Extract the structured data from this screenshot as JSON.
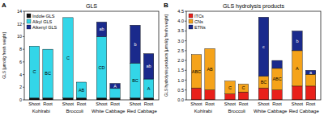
{
  "chart_data": [
    {
      "type": "bar",
      "stacked": true,
      "panel_label": "A",
      "title": "GLS",
      "y_label": "GLS [µmol/g fresh weight]",
      "categories": [
        "Shoot",
        "Root",
        "Shoot",
        "Root",
        "Shoot",
        "Root",
        "Shoot",
        "Root"
      ],
      "groups": [
        "Kohlrabi",
        "Broccoli",
        "White Cabbage",
        "Red Cabbage"
      ],
      "ylim": [
        0,
        14
      ],
      "yticks": [
        0,
        2,
        4,
        6,
        8,
        10,
        12,
        14
      ],
      "legend": "top-left",
      "series": [
        {
          "name": "Indole GLS",
          "color": "#111111",
          "values": [
            0.3,
            0.3,
            0.3,
            0.3,
            0.3,
            0.3,
            0.3,
            0.3
          ],
          "letters": [
            null,
            null,
            null,
            null,
            null,
            null,
            null,
            null
          ]
        },
        {
          "name": "Alkyl GLS",
          "color": "#33d6e8",
          "values": [
            8.2,
            7.7,
            12.7,
            2.5,
            9.7,
            1.5,
            5.5,
            3.0
          ],
          "letters": [
            "C",
            "BC",
            "C",
            "AB",
            "CD",
            null,
            "BC",
            "A"
          ]
        },
        {
          "name": "Alkenyl GLS",
          "color": "#1a2a8c",
          "values": [
            0,
            0,
            0,
            0,
            2.3,
            0.8,
            6.0,
            4.0
          ],
          "letters": [
            null,
            null,
            null,
            null,
            "ab",
            "A",
            "b",
            "ab"
          ]
        }
      ]
    },
    {
      "type": "bar",
      "stacked": true,
      "panel_label": "B",
      "title": "GLS hydrolysis products",
      "y_label": "GLS hydrolysis products [µmol/g fresh weight]",
      "categories": [
        "Shoot",
        "Root",
        "Shoot",
        "Root",
        "Shoot",
        "Root",
        "Shoot",
        "Root"
      ],
      "groups": [
        "Kohlrabi",
        "Broccoli",
        "White Cabbage",
        "Red Cabbage"
      ],
      "ylim": [
        0,
        4.5
      ],
      "yticks": [
        {
          "value": 0,
          "label": "0.0"
        },
        0.5,
        {
          "value": 1,
          "label": "1.0"
        },
        1.5,
        {
          "value": 2,
          "label": "2.0"
        },
        2.5,
        {
          "value": 3,
          "label": "3.0"
        },
        3.5,
        {
          "value": 4,
          "label": "4.0"
        },
        4.5
      ],
      "legend": "top-left",
      "series": [
        {
          "name": "ITCs",
          "color": "#e8201a",
          "values": [
            0.6,
            0.5,
            0.3,
            0.4,
            0.6,
            0.5,
            0.7,
            0.7
          ],
          "letters": [
            null,
            null,
            null,
            null,
            null,
            null,
            null,
            null
          ]
        },
        {
          "name": "CNs",
          "color": "#f5a31a",
          "values": [
            1.7,
            2.1,
            0.65,
            0.4,
            0.6,
            1.1,
            1.8,
            0.6
          ],
          "letters": [
            "ABC",
            "AB",
            "C",
            "C",
            "BC",
            "ABC",
            "A",
            null
          ]
        },
        {
          "name": "ETNs",
          "color": "#1a2a8c",
          "values": [
            0,
            0,
            0,
            0,
            3.0,
            0.4,
            1.0,
            0.2
          ],
          "letters": [
            null,
            null,
            null,
            null,
            "c",
            null,
            "b",
            "a"
          ]
        }
      ]
    }
  ]
}
